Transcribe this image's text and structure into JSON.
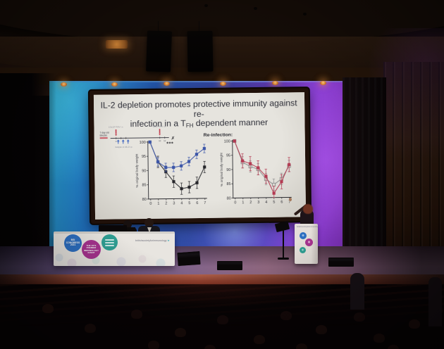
{
  "slide": {
    "title": {
      "line1": "IL-2 depletion promotes protective immunity against re-",
      "line2_pre": "infection in a T",
      "line2_sub": "FH",
      "line2_post": " dependent manner"
    },
    "timeline": {
      "top_left": "2.5x10⁵ RSV i.n.",
      "top_right": "8x10⁵ RSV i.n.",
      "left_line1": "7-day old",
      "left_line2": "BALB/c",
      "bottom": "Isotype or αIL-2 i.p.",
      "ticks": [
        "0",
        "10",
        "12"
      ],
      "end_mark": "✗"
    }
  },
  "chart_data": [
    {
      "type": "line",
      "title": "",
      "annotation": "***",
      "x": [
        0,
        1,
        2,
        3,
        4,
        5,
        6,
        7
      ],
      "xlabel": "",
      "ylabel": "% original body weight",
      "ylim": [
        80,
        100
      ],
      "yticks": [
        80,
        85,
        90,
        95,
        100
      ],
      "grid": false,
      "legend": "none",
      "series": [
        {
          "name": "black-squares",
          "marker": "filled",
          "color": "#26262a",
          "error": 2,
          "values": [
            100,
            93,
            89.5,
            86,
            83.5,
            84,
            85.5,
            91
          ]
        },
        {
          "name": "blue-squares",
          "marker": "filled",
          "color": "#3b55a8",
          "error": 1.5,
          "values": [
            100,
            93,
            91,
            91,
            91.5,
            93,
            95.5,
            97.5
          ]
        }
      ]
    },
    {
      "type": "line",
      "title": "Re-infection:",
      "annotation": "",
      "x": [
        0,
        1,
        2,
        3,
        4,
        5,
        6,
        7
      ],
      "xlabel": "",
      "ylabel": "% original body weight",
      "ylim": [
        80,
        100
      ],
      "yticks": [
        80,
        85,
        90,
        95,
        100
      ],
      "grid": false,
      "legend": "none",
      "series": [
        {
          "name": "open-gray-squares",
          "marker": "open",
          "color": "#8e8e8e",
          "error": 2,
          "values": [
            100,
            92.5,
            91,
            90,
            86.5,
            84.5,
            86.5,
            91
          ]
        },
        {
          "name": "red-squares",
          "marker": "filled",
          "color": "#b43a52",
          "error": 2.5,
          "values": [
            100,
            93,
            92,
            90.5,
            87.5,
            81.5,
            85.5,
            91.5
          ]
        }
      ]
    }
  ],
  "venue": {
    "desk_logo": "britishsocietyforimmunology",
    "lectern_logo": "britishsocietyforimmunology",
    "circle_blue_lines": [
      "BSI",
      "CONGRESS",
      "2021"
    ],
    "circle_magenta_lines": [
      "THE UK'S",
      "PREMIER",
      "IMMUNOLOGY",
      "EVENT"
    ]
  },
  "colors": {
    "backdrop_cyan": "#2aa3c4",
    "backdrop_blue": "#1e66b8",
    "backdrop_purple": "#8a3ed2",
    "lamp_amber": "#e89a3c",
    "slide_bg": "#dcdad2",
    "chart_blue": "#3b55a8",
    "chart_red": "#b43a52",
    "chart_black": "#26262a",
    "chart_gray": "#8e8e8e",
    "stage_front": "#b2604a"
  }
}
